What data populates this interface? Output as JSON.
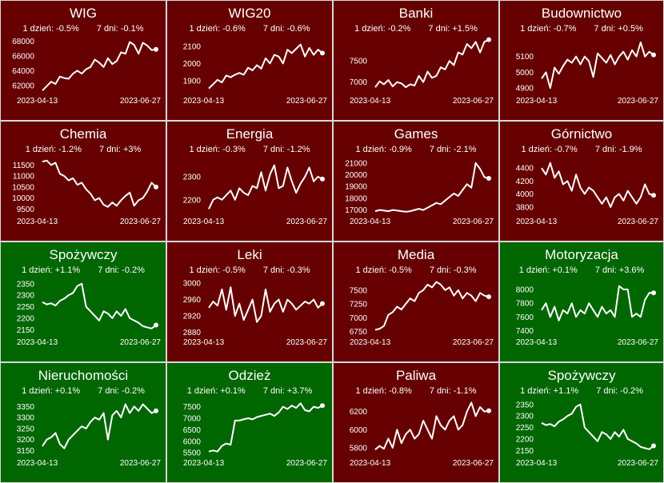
{
  "colors": {
    "down": "#660000",
    "up": "#006600",
    "line": "#ffffff",
    "text": "#ffffff",
    "border": "#d8d8d8"
  },
  "stat_labels": {
    "d1": "1 dzień: ",
    "d7": "7 dni: "
  },
  "chart_data": [
    {
      "type": "line",
      "title": "WIG",
      "d1": "-0.5%",
      "d7": "-0.1%",
      "trend": "down",
      "xlabels": [
        "2023-04-13",
        "2023-06-27"
      ],
      "yticks": [
        62000,
        64000,
        66000,
        68000
      ],
      "ylim": [
        61000,
        68500
      ],
      "x": [
        0,
        2,
        4,
        6,
        8,
        10,
        12,
        14,
        16,
        18,
        20,
        22,
        24,
        26,
        28,
        30,
        32,
        34,
        36,
        38,
        40,
        42,
        44,
        46,
        48,
        50,
        52
      ],
      "y": [
        61300,
        61900,
        62500,
        62200,
        63200,
        63000,
        62900,
        63600,
        64000,
        63600,
        64200,
        64500,
        65500,
        65100,
        64500,
        65700,
        64900,
        65300,
        66500,
        66300,
        67900,
        67500,
        66300,
        67800,
        67400,
        66800,
        66900
      ]
    },
    {
      "type": "line",
      "title": "WIG20",
      "d1": "-0.6%",
      "d7": "-0.6%",
      "trend": "down",
      "xlabels": [
        "2023-04-13",
        "2023-06-27"
      ],
      "yticks": [
        1900,
        2000,
        2100
      ],
      "ylim": [
        1830,
        2150
      ],
      "x": [
        0,
        2,
        4,
        6,
        8,
        10,
        12,
        14,
        16,
        18,
        20,
        22,
        24,
        26,
        28,
        30,
        32,
        34,
        36,
        38,
        40,
        42,
        44,
        46,
        48,
        50,
        52
      ],
      "y": [
        1855,
        1880,
        1905,
        1890,
        1930,
        1920,
        1935,
        1945,
        1935,
        1975,
        1960,
        1990,
        1970,
        2030,
        2000,
        2050,
        2040,
        2000,
        2080,
        2060,
        2085,
        2110,
        2040,
        2090,
        2050,
        2080,
        2060
      ]
    },
    {
      "type": "line",
      "title": "Banki",
      "d1": "-0.2%",
      "d7": "+1.5%",
      "trend": "down",
      "xlabels": [
        "2023-04-13",
        "2023-06-27"
      ],
      "yticks": [
        7000,
        7500
      ],
      "ylim": [
        6750,
        8050
      ],
      "x": [
        0,
        2,
        4,
        6,
        8,
        10,
        12,
        14,
        16,
        18,
        20,
        22,
        24,
        26,
        28,
        30,
        32,
        34,
        36,
        38,
        40,
        42,
        44,
        46,
        48,
        50,
        52
      ],
      "y": [
        6880,
        7020,
        6950,
        7050,
        6900,
        7000,
        6970,
        6880,
        6950,
        6920,
        7150,
        7000,
        7250,
        7100,
        7150,
        7350,
        7300,
        7500,
        7400,
        7700,
        7650,
        7900,
        7800,
        7950,
        7700,
        7950,
        8000
      ]
    },
    {
      "type": "line",
      "title": "Budownictwo",
      "d1": "-0.7%",
      "d7": "+0.5%",
      "trend": "down",
      "xlabels": [
        "2023-04-13",
        "2023-06-27"
      ],
      "yticks": [
        4900,
        5000,
        5100
      ],
      "ylim": [
        4870,
        5220
      ],
      "x": [
        0,
        2,
        4,
        6,
        8,
        10,
        12,
        14,
        16,
        18,
        20,
        22,
        24,
        26,
        28,
        30,
        32,
        34,
        36,
        38,
        40,
        42,
        44,
        46,
        48,
        50,
        52
      ],
      "y": [
        4960,
        5000,
        4900,
        5030,
        4990,
        5040,
        5080,
        5060,
        5100,
        5050,
        5100,
        5070,
        4970,
        5120,
        5090,
        5060,
        5110,
        5050,
        5100,
        5130,
        5080,
        5140,
        5100,
        5190,
        5100,
        5130,
        5110
      ]
    },
    {
      "type": "line",
      "title": "Chemia",
      "d1": "-1.2%",
      "d7": "+3%",
      "trend": "down",
      "xlabels": [
        "2023-04-13",
        "2023-06-27"
      ],
      "yticks": [
        9500,
        10000,
        10500,
        11000,
        11500
      ],
      "ylim": [
        9300,
        11800
      ],
      "x": [
        0,
        2,
        4,
        6,
        8,
        10,
        12,
        14,
        16,
        18,
        20,
        22,
        24,
        26,
        28,
        30,
        32,
        34,
        36,
        38,
        40,
        42,
        44,
        46,
        48,
        50,
        52
      ],
      "y": [
        11650,
        11700,
        11500,
        11600,
        11100,
        11000,
        10800,
        10900,
        10600,
        10700,
        10400,
        10200,
        9900,
        10000,
        9700,
        9600,
        9800,
        9650,
        9900,
        10100,
        10250,
        9650,
        9900,
        10000,
        10300,
        10700,
        10500
      ]
    },
    {
      "type": "line",
      "title": "Energia",
      "d1": "-0.3%",
      "d7": "-1.2%",
      "trend": "down",
      "xlabels": [
        "2023-04-13",
        "2023-06-27"
      ],
      "yticks": [
        2200,
        2300
      ],
      "ylim": [
        2140,
        2380
      ],
      "x": [
        0,
        2,
        4,
        6,
        8,
        10,
        12,
        14,
        16,
        18,
        20,
        22,
        24,
        26,
        28,
        30,
        32,
        34,
        36,
        38,
        40,
        42,
        44,
        46,
        48,
        50,
        52
      ],
      "y": [
        2160,
        2200,
        2210,
        2200,
        2220,
        2240,
        2200,
        2250,
        2230,
        2220,
        2260,
        2250,
        2320,
        2240,
        2310,
        2350,
        2250,
        2260,
        2340,
        2280,
        2230,
        2270,
        2300,
        2340,
        2280,
        2300,
        2290
      ]
    },
    {
      "type": "line",
      "title": "Games",
      "d1": "-0.9%",
      "d7": "-2.1%",
      "trend": "down",
      "xlabels": [
        "2023-04-13",
        "2023-06-27"
      ],
      "yticks": [
        17000,
        18000,
        19000,
        20000,
        21000
      ],
      "ylim": [
        16700,
        21400
      ],
      "x": [
        0,
        2,
        4,
        6,
        8,
        10,
        12,
        14,
        16,
        18,
        20,
        22,
        24,
        26,
        28,
        30,
        32,
        34,
        36,
        38,
        40,
        42,
        44,
        46,
        48,
        50,
        52
      ],
      "y": [
        16900,
        17000,
        16950,
        16900,
        17000,
        16950,
        16900,
        16850,
        16900,
        17000,
        17100,
        17000,
        17200,
        17400,
        17600,
        17500,
        17800,
        18100,
        18400,
        18200,
        18700,
        19200,
        18900,
        21000,
        20500,
        19800,
        19700
      ]
    },
    {
      "type": "line",
      "title": "Górnictwo",
      "d1": "-0.7%",
      "d7": "-1.9%",
      "trend": "down",
      "xlabels": [
        "2023-04-13",
        "2023-06-27"
      ],
      "yticks": [
        3800,
        4000,
        4200,
        4400
      ],
      "ylim": [
        3700,
        4550
      ],
      "x": [
        0,
        2,
        4,
        6,
        8,
        10,
        12,
        14,
        16,
        18,
        20,
        22,
        24,
        26,
        28,
        30,
        32,
        34,
        36,
        38,
        40,
        42,
        44,
        46,
        48,
        50,
        52
      ],
      "y": [
        4400,
        4300,
        4480,
        4250,
        4350,
        4150,
        4200,
        4050,
        4300,
        4100,
        4000,
        4100,
        4050,
        3950,
        3850,
        3950,
        3800,
        3950,
        4000,
        3900,
        4050,
        3950,
        3850,
        3950,
        4150,
        4000,
        3980
      ]
    },
    {
      "type": "line",
      "title": "Spożywczy",
      "d1": "+1.1%",
      "d7": "-0.2%",
      "trend": "up",
      "xlabels": [
        "2023-04-13",
        "2023-06-27"
      ],
      "yticks": [
        2150,
        2200,
        2250,
        2300,
        2350
      ],
      "ylim": [
        2130,
        2370
      ],
      "x": [
        0,
        2,
        4,
        6,
        8,
        10,
        12,
        14,
        16,
        18,
        20,
        22,
        24,
        26,
        28,
        30,
        32,
        34,
        36,
        38,
        40,
        42,
        44,
        46,
        48,
        50,
        52
      ],
      "y": [
        2270,
        2260,
        2265,
        2255,
        2275,
        2285,
        2300,
        2310,
        2340,
        2350,
        2250,
        2230,
        2210,
        2190,
        2230,
        2220,
        2200,
        2230,
        2210,
        2240,
        2200,
        2190,
        2180,
        2165,
        2160,
        2155,
        2170
      ]
    },
    {
      "type": "line",
      "title": "Leki",
      "d1": "-0.5%",
      "d7": "-0.3%",
      "trend": "down",
      "xlabels": [
        "2023-04-13",
        "2023-06-27"
      ],
      "yticks": [
        2880,
        2920,
        2960,
        3000
      ],
      "ylim": [
        2875,
        3010
      ],
      "x": [
        0,
        2,
        4,
        6,
        8,
        10,
        12,
        14,
        16,
        18,
        20,
        22,
        24,
        26,
        28,
        30,
        32,
        34,
        36,
        38,
        40,
        42,
        44,
        46,
        48,
        50,
        52
      ],
      "y": [
        2940,
        2955,
        2945,
        2985,
        2935,
        2990,
        2920,
        2950,
        2910,
        2935,
        2960,
        2905,
        2920,
        2985,
        2930,
        2950,
        2960,
        2930,
        2960,
        2950,
        2935,
        2945,
        2955,
        2950,
        2960,
        2940,
        2950
      ]
    },
    {
      "type": "line",
      "title": "Media",
      "d1": "-0.5%",
      "d7": "-0.3%",
      "trend": "down",
      "xlabels": [
        "2023-04-13",
        "2023-06-27"
      ],
      "yticks": [
        6750,
        7000,
        7250,
        7500
      ],
      "ylim": [
        6700,
        7700
      ],
      "x": [
        0,
        2,
        4,
        6,
        8,
        10,
        12,
        14,
        16,
        18,
        20,
        22,
        24,
        26,
        28,
        30,
        32,
        34,
        36,
        38,
        40,
        42,
        44,
        46,
        48,
        50,
        52
      ],
      "y": [
        6780,
        6800,
        6850,
        7050,
        7100,
        7200,
        7150,
        7250,
        7350,
        7300,
        7450,
        7500,
        7600,
        7550,
        7650,
        7600,
        7500,
        7550,
        7400,
        7500,
        7350,
        7450,
        7400,
        7300,
        7450,
        7400,
        7380
      ]
    },
    {
      "type": "line",
      "title": "Motoryzacja",
      "d1": "+0.1%",
      "d7": "+3.6%",
      "trend": "up",
      "xlabels": [
        "2023-04-13",
        "2023-06-27"
      ],
      "yticks": [
        7400,
        7600,
        7800,
        8000
      ],
      "ylim": [
        7350,
        8150
      ],
      "x": [
        0,
        2,
        4,
        6,
        8,
        10,
        12,
        14,
        16,
        18,
        20,
        22,
        24,
        26,
        28,
        30,
        32,
        34,
        36,
        38,
        40,
        42,
        44,
        46,
        48,
        50,
        52
      ],
      "y": [
        7700,
        7800,
        7600,
        7750,
        7550,
        7700,
        7650,
        7800,
        7600,
        7700,
        7650,
        7800,
        7700,
        7600,
        7750,
        7650,
        7700,
        7600,
        8050,
        8000,
        8000,
        7600,
        7650,
        7600,
        7850,
        7950,
        7950
      ]
    },
    {
      "type": "line",
      "title": "Nieruchomości",
      "d1": "+0.1%",
      "d7": "-0.2%",
      "trend": "up",
      "xlabels": [
        "2023-04-13",
        "2023-06-27"
      ],
      "yticks": [
        3150,
        3200,
        3250,
        3300,
        3350
      ],
      "ylim": [
        3130,
        3380
      ],
      "x": [
        0,
        2,
        4,
        6,
        8,
        10,
        12,
        14,
        16,
        18,
        20,
        22,
        24,
        26,
        28,
        30,
        32,
        34,
        36,
        38,
        40,
        42,
        44,
        46,
        48,
        50,
        52
      ],
      "y": [
        3170,
        3200,
        3210,
        3230,
        3180,
        3160,
        3200,
        3220,
        3240,
        3260,
        3250,
        3280,
        3300,
        3290,
        3320,
        3200,
        3310,
        3330,
        3300,
        3360,
        3320,
        3350,
        3330,
        3360,
        3340,
        3320,
        3330
      ]
    },
    {
      "type": "line",
      "title": "Odzież",
      "d1": "+0.1%",
      "d7": "+3.7%",
      "trend": "up",
      "xlabels": [
        "2023-04-13",
        "2023-06-27"
      ],
      "yticks": [
        5500,
        6000,
        6500,
        7000,
        7500
      ],
      "ylim": [
        5400,
        7800
      ],
      "x": [
        0,
        2,
        4,
        6,
        8,
        10,
        12,
        14,
        16,
        18,
        20,
        22,
        24,
        26,
        28,
        30,
        32,
        34,
        36,
        38,
        40,
        42,
        44,
        46,
        48,
        50,
        52
      ],
      "y": [
        5550,
        5600,
        5550,
        5800,
        5900,
        5850,
        6900,
        6900,
        6950,
        7000,
        6950,
        7050,
        7100,
        7150,
        7200,
        7100,
        7250,
        7500,
        7400,
        7550,
        7450,
        7650,
        7350,
        7300,
        7500,
        7450,
        7550
      ]
    },
    {
      "type": "line",
      "title": "Paliwa",
      "d1": "-0.8%",
      "d7": "-1.1%",
      "trend": "down",
      "xlabels": [
        "2023-04-13",
        "2023-06-27"
      ],
      "yticks": [
        5800,
        6000,
        6200
      ],
      "ylim": [
        5720,
        6330
      ],
      "x": [
        0,
        2,
        4,
        6,
        8,
        10,
        12,
        14,
        16,
        18,
        20,
        22,
        24,
        26,
        28,
        30,
        32,
        34,
        36,
        38,
        40,
        42,
        44,
        46,
        48,
        50,
        52
      ],
      "y": [
        5780,
        5820,
        5790,
        5900,
        5800,
        6000,
        5850,
        5950,
        6000,
        5900,
        5950,
        6100,
        6000,
        5900,
        6150,
        6050,
        6000,
        6100,
        6150,
        6000,
        6050,
        6200,
        6300,
        6150,
        6250,
        6200,
        6210
      ]
    },
    {
      "type": "line",
      "title": "Spożywczy",
      "d1": "+1.1%",
      "d7": "-0.2%",
      "trend": "up",
      "xlabels": [
        "2023-04-13",
        "2023-06-27"
      ],
      "yticks": [
        2150,
        2200,
        2250,
        2300,
        2350
      ],
      "ylim": [
        2130,
        2370
      ],
      "x": [
        0,
        2,
        4,
        6,
        8,
        10,
        12,
        14,
        16,
        18,
        20,
        22,
        24,
        26,
        28,
        30,
        32,
        34,
        36,
        38,
        40,
        42,
        44,
        46,
        48,
        50,
        52
      ],
      "y": [
        2270,
        2260,
        2265,
        2255,
        2275,
        2285,
        2300,
        2310,
        2340,
        2350,
        2250,
        2230,
        2210,
        2190,
        2230,
        2220,
        2200,
        2230,
        2210,
        2240,
        2200,
        2190,
        2180,
        2165,
        2160,
        2155,
        2170
      ]
    }
  ]
}
